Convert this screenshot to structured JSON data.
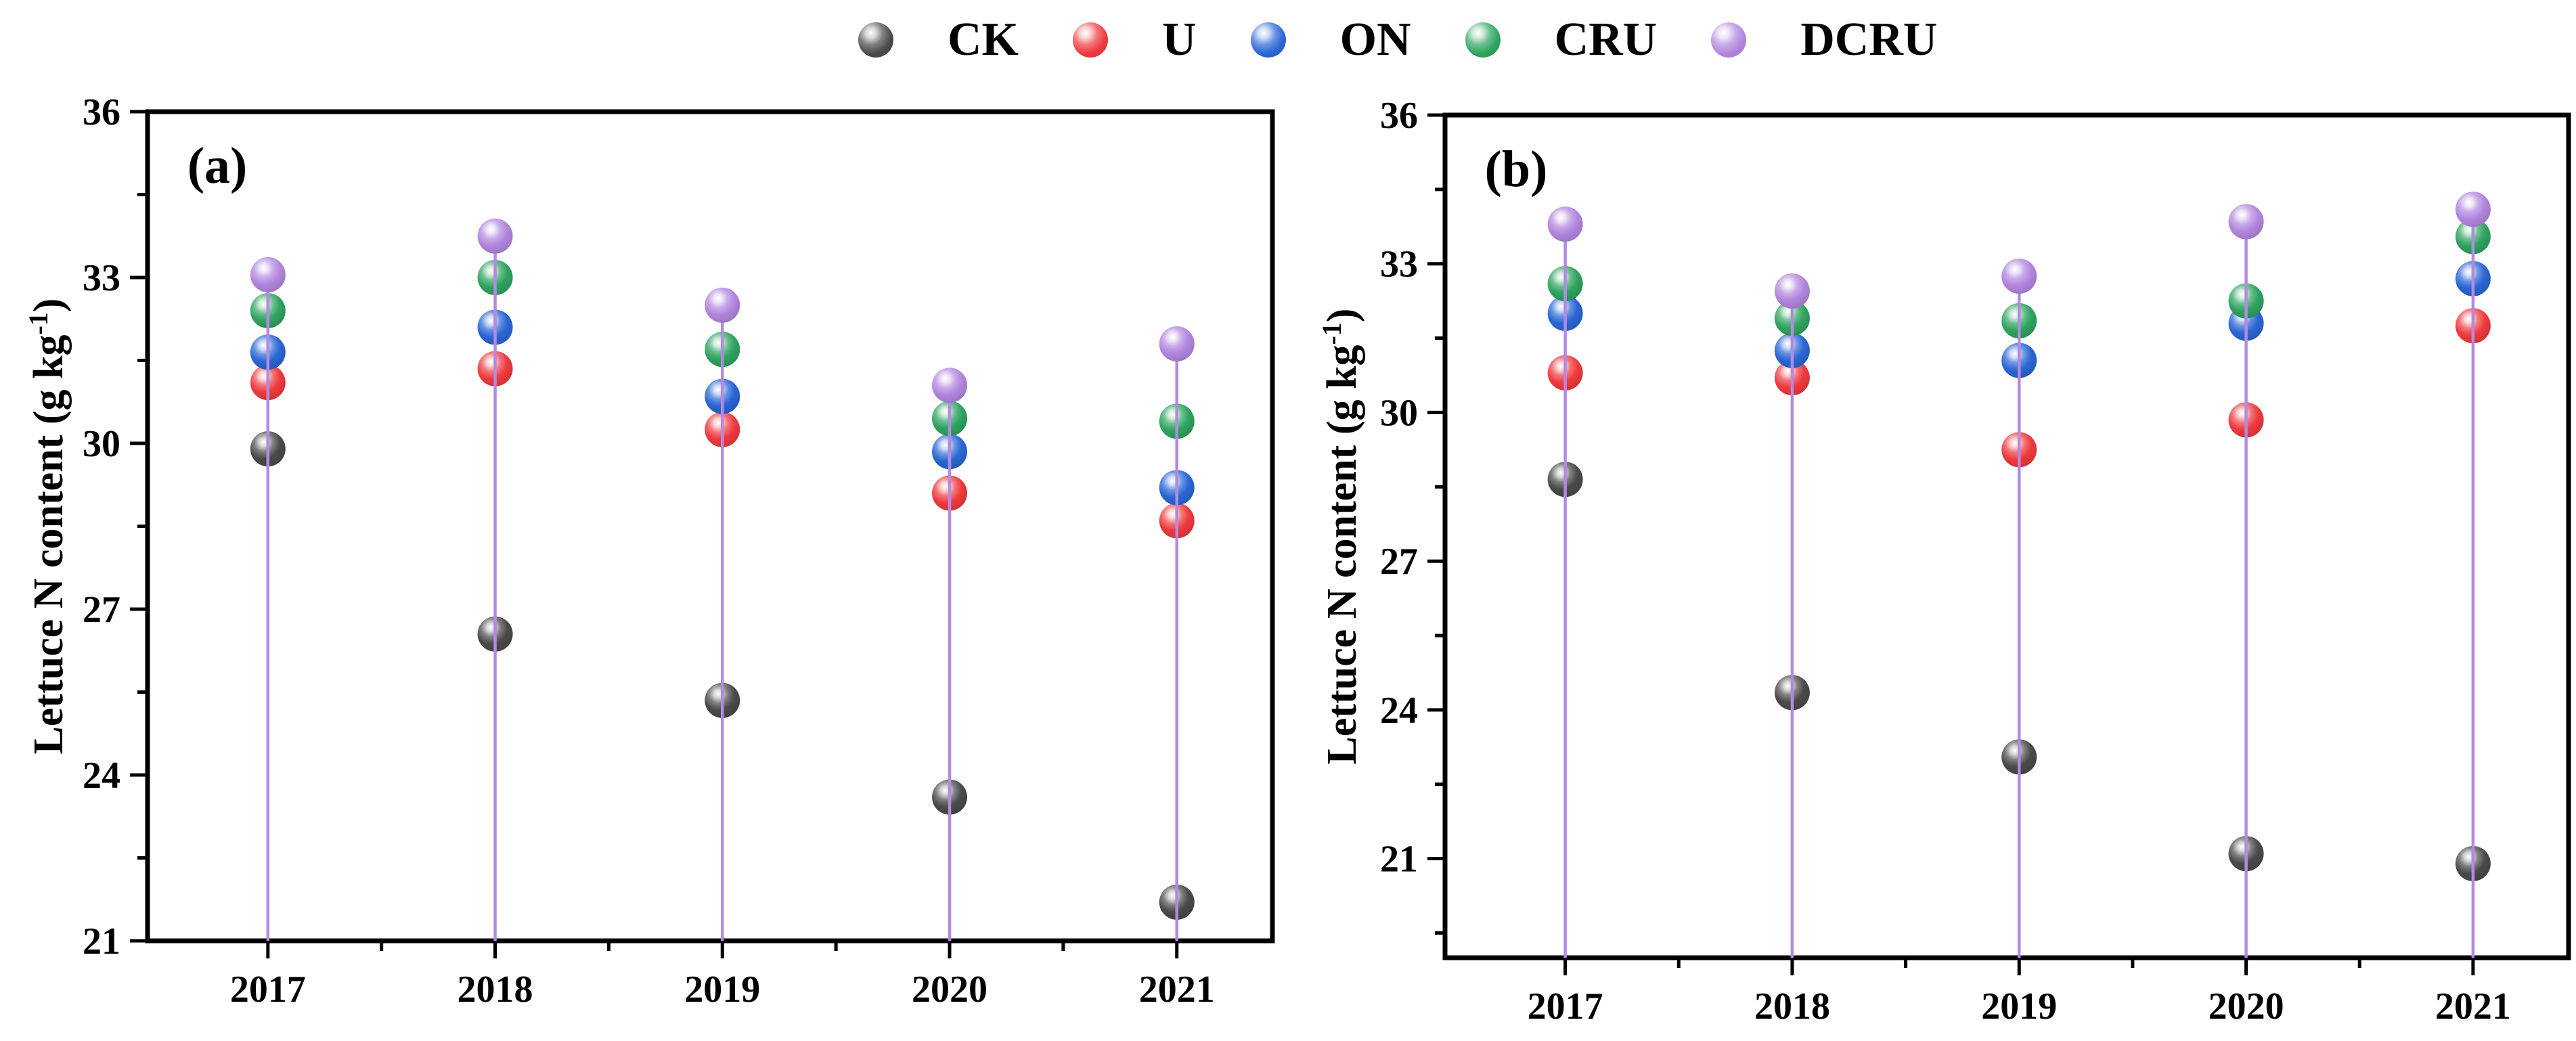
{
  "figure": {
    "background": "#ffffff",
    "frame_color": "#000000",
    "text_color": "#000000",
    "dropline_color": "#b48ae0",
    "legend": {
      "position": "top-center",
      "items": [
        {
          "label": "CK",
          "color": "#4a4a4a"
        },
        {
          "label": "U",
          "color": "#ee3a3e"
        },
        {
          "label": "ON",
          "color": "#2a66d4"
        },
        {
          "label": "CRU",
          "color": "#2fa35f"
        },
        {
          "label": "DCRU",
          "color": "#b286df"
        }
      ]
    }
  },
  "chart_data": [
    {
      "type": "scatter",
      "panel_label": "(a)",
      "title": "",
      "xlabel": "",
      "ylabel": "Lettuce N content (g kg⁻¹)",
      "categories": [
        "2017",
        "2018",
        "2019",
        "2020",
        "2021"
      ],
      "ylim": [
        21,
        36
      ],
      "yticks": [
        21,
        24,
        27,
        30,
        33,
        36
      ],
      "minor_tick_step": 1.5,
      "grid": false,
      "marker": "sphere",
      "dropline_series": "DCRU",
      "series": [
        {
          "name": "CK",
          "color": "#4a4a4a",
          "values": [
            29.9,
            26.55,
            25.35,
            23.6,
            21.7
          ]
        },
        {
          "name": "U",
          "color": "#ee3a3e",
          "values": [
            31.1,
            31.35,
            30.25,
            29.1,
            28.6
          ]
        },
        {
          "name": "ON",
          "color": "#2a66d4",
          "values": [
            31.65,
            32.1,
            30.85,
            29.85,
            29.2
          ]
        },
        {
          "name": "CRU",
          "color": "#2fa35f",
          "values": [
            32.4,
            33.0,
            31.7,
            30.45,
            30.4
          ]
        },
        {
          "name": "DCRU",
          "color": "#b286df",
          "values": [
            33.05,
            33.75,
            32.5,
            31.05,
            31.8
          ]
        }
      ]
    },
    {
      "type": "scatter",
      "panel_label": "(b)",
      "title": "",
      "xlabel": "",
      "ylabel": "Lettuce N content (g kg⁻¹)",
      "categories": [
        "2017",
        "2018",
        "2019",
        "2020",
        "2021"
      ],
      "ylim": [
        19,
        36
      ],
      "yticks": [
        21,
        24,
        27,
        30,
        33,
        36
      ],
      "minor_tick_step": 1.5,
      "grid": false,
      "marker": "sphere",
      "dropline_series": "DCRU",
      "series": [
        {
          "name": "CK",
          "color": "#4a4a4a",
          "values": [
            28.65,
            24.35,
            23.05,
            21.1,
            20.9
          ]
        },
        {
          "name": "U",
          "color": "#ee3a3e",
          "values": [
            30.8,
            30.7,
            29.25,
            29.85,
            31.75
          ]
        },
        {
          "name": "ON",
          "color": "#2a66d4",
          "values": [
            32.0,
            31.25,
            31.05,
            31.8,
            32.7
          ]
        },
        {
          "name": "CRU",
          "color": "#2fa35f",
          "values": [
            32.6,
            31.9,
            31.85,
            32.25,
            33.55
          ]
        },
        {
          "name": "DCRU",
          "color": "#b286df",
          "values": [
            33.8,
            32.45,
            32.75,
            33.85,
            34.1
          ]
        }
      ]
    }
  ]
}
